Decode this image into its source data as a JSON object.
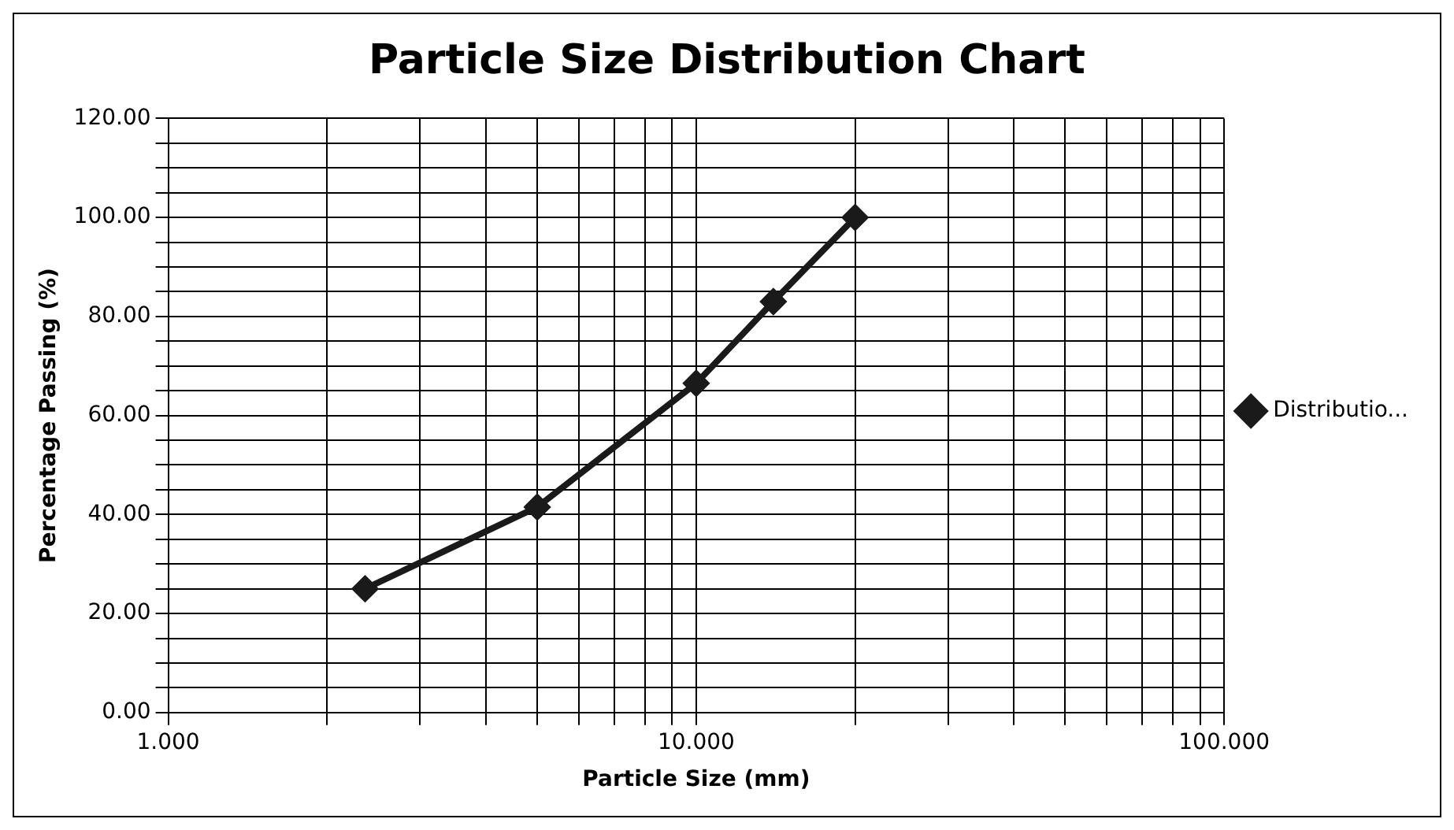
{
  "chart_data": {
    "type": "line",
    "title": "Particle Size Distribution Chart",
    "xlabel": "Particle Size (mm)",
    "ylabel": "Percentage Passing (%)",
    "x": [
      2.36,
      5,
      10,
      14,
      20
    ],
    "series": [
      {
        "name": "Distributio...",
        "color": "#1a1a1a",
        "values": [
          25,
          41.5,
          66.5,
          83,
          100
        ]
      }
    ],
    "log": "x",
    "xlim": [
      1,
      100
    ],
    "xticks": [
      {
        "value": 1,
        "label": "1.000"
      },
      {
        "value": 2,
        "label": null
      },
      {
        "value": 3,
        "label": null
      },
      {
        "value": 4,
        "label": null
      },
      {
        "value": 5,
        "label": null
      },
      {
        "value": 6,
        "label": null
      },
      {
        "value": 7,
        "label": null
      },
      {
        "value": 8,
        "label": null
      },
      {
        "value": 9,
        "label": null
      },
      {
        "value": 10,
        "label": "10.000"
      },
      {
        "value": 20,
        "label": null
      },
      {
        "value": 30,
        "label": null
      },
      {
        "value": 40,
        "label": null
      },
      {
        "value": 50,
        "label": null
      },
      {
        "value": 60,
        "label": null
      },
      {
        "value": 70,
        "label": null
      },
      {
        "value": 80,
        "label": null
      },
      {
        "value": 90,
        "label": null
      },
      {
        "value": 100,
        "label": "100.000"
      }
    ],
    "ylim": [
      0,
      120
    ],
    "yticks": [
      {
        "value": 0,
        "label": "0.00"
      },
      {
        "value": 5,
        "label": null
      },
      {
        "value": 10,
        "label": null
      },
      {
        "value": 15,
        "label": null
      },
      {
        "value": 20,
        "label": "20.00"
      },
      {
        "value": 25,
        "label": null
      },
      {
        "value": 30,
        "label": null
      },
      {
        "value": 35,
        "label": null
      },
      {
        "value": 40,
        "label": "40.00"
      },
      {
        "value": 45,
        "label": null
      },
      {
        "value": 50,
        "label": null
      },
      {
        "value": 55,
        "label": null
      },
      {
        "value": 60,
        "label": "60.00"
      },
      {
        "value": 65,
        "label": null
      },
      {
        "value": 70,
        "label": null
      },
      {
        "value": 75,
        "label": null
      },
      {
        "value": 80,
        "label": "80.00"
      },
      {
        "value": 85,
        "label": null
      },
      {
        "value": 90,
        "label": null
      },
      {
        "value": 95,
        "label": null
      },
      {
        "value": 100,
        "label": "100.00"
      },
      {
        "value": 105,
        "label": null
      },
      {
        "value": 110,
        "label": null
      },
      {
        "value": 115,
        "label": null
      },
      {
        "value": 120,
        "label": "120.00"
      }
    ],
    "grid": true,
    "legend": "right",
    "marker": "diamond",
    "line_style": "solid"
  }
}
